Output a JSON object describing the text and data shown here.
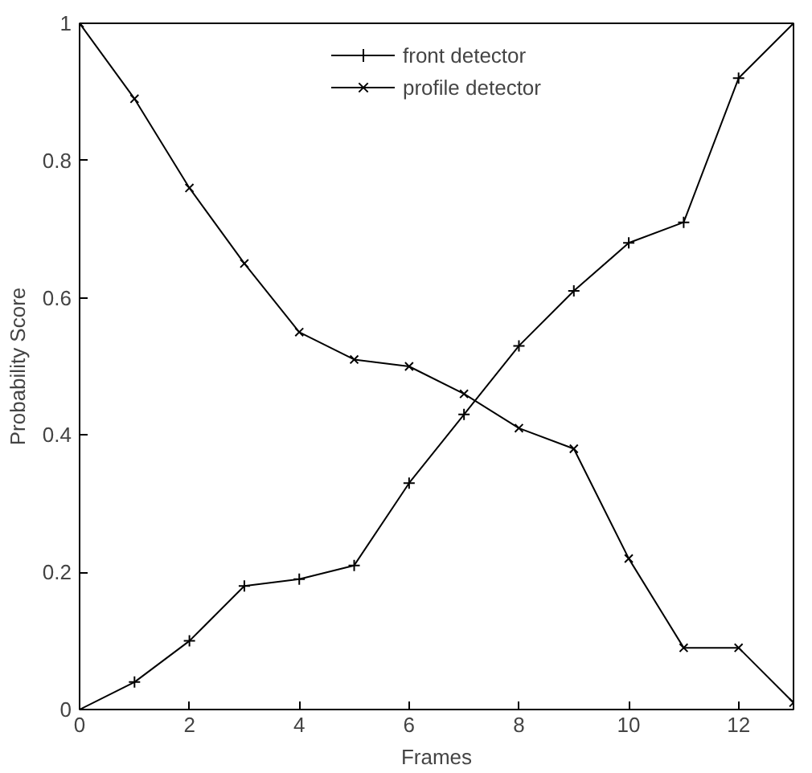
{
  "chart_data": {
    "type": "line",
    "xlabel": "Frames",
    "ylabel": "Probability Score",
    "x": [
      0,
      1,
      2,
      3,
      4,
      5,
      6,
      7,
      8,
      9,
      10,
      11,
      12,
      13
    ],
    "series": [
      {
        "name": "front detector",
        "color": "#000000",
        "marker": "cross",
        "values": [
          0,
          0.04,
          0.1,
          0.18,
          0.19,
          0.21,
          0.33,
          0.43,
          0.53,
          0.61,
          0.68,
          0.71,
          0.92,
          1.0
        ]
      },
      {
        "name": "profile detector",
        "color": "#000000",
        "marker": "x",
        "values": [
          1.0,
          0.89,
          0.76,
          0.65,
          0.55,
          0.51,
          0.5,
          0.46,
          0.41,
          0.38,
          0.22,
          0.09,
          0.09,
          0.01
        ]
      }
    ],
    "xlim": [
      0,
      13
    ],
    "ylim": [
      0,
      1
    ],
    "xticks": [
      0,
      2,
      4,
      6,
      8,
      10,
      12
    ],
    "yticks": [
      0,
      0.2,
      0.4,
      0.6,
      0.8,
      1
    ],
    "grid": false,
    "legend": "top",
    "line_style": "solid"
  }
}
